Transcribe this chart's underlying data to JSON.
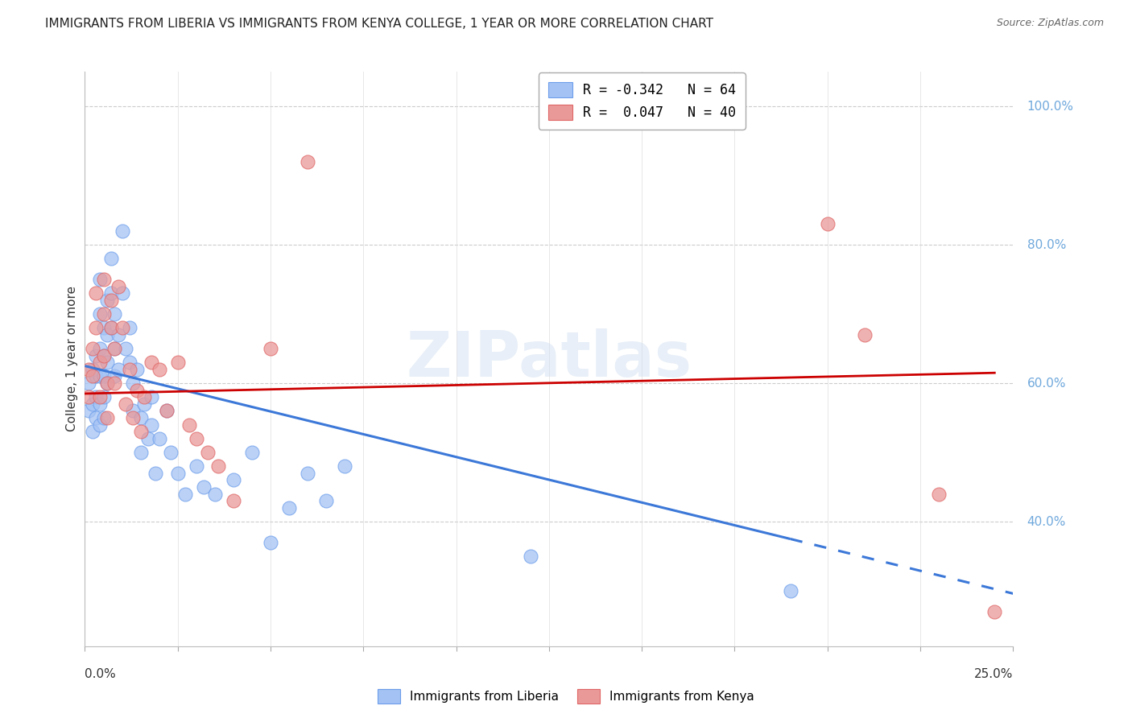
{
  "title": "IMMIGRANTS FROM LIBERIA VS IMMIGRANTS FROM KENYA COLLEGE, 1 YEAR OR MORE CORRELATION CHART",
  "source": "Source: ZipAtlas.com",
  "ylabel": "College, 1 year or more",
  "ylabel_right_ticks": [
    "40.0%",
    "60.0%",
    "80.0%",
    "100.0%"
  ],
  "ylabel_right_vals": [
    0.4,
    0.6,
    0.8,
    1.0
  ],
  "xlim": [
    0.0,
    0.25
  ],
  "ylim": [
    0.22,
    1.05
  ],
  "liberia_R": -0.342,
  "liberia_N": 64,
  "kenya_R": 0.047,
  "kenya_N": 40,
  "liberia_color": "#a4c2f4",
  "kenya_color": "#ea9999",
  "liberia_edge_color": "#6d9eeb",
  "kenya_edge_color": "#e06666",
  "liberia_line_color": "#3c78d8",
  "kenya_line_color": "#cc0000",
  "watermark": "ZIPatlas",
  "liberia_x": [
    0.001,
    0.001,
    0.002,
    0.002,
    0.002,
    0.003,
    0.003,
    0.003,
    0.003,
    0.004,
    0.004,
    0.004,
    0.004,
    0.004,
    0.004,
    0.005,
    0.005,
    0.005,
    0.005,
    0.005,
    0.006,
    0.006,
    0.006,
    0.006,
    0.007,
    0.007,
    0.007,
    0.008,
    0.008,
    0.008,
    0.009,
    0.009,
    0.01,
    0.01,
    0.011,
    0.012,
    0.012,
    0.013,
    0.013,
    0.014,
    0.015,
    0.015,
    0.016,
    0.017,
    0.018,
    0.018,
    0.019,
    0.02,
    0.022,
    0.023,
    0.025,
    0.027,
    0.03,
    0.032,
    0.035,
    0.04,
    0.045,
    0.05,
    0.055,
    0.06,
    0.065,
    0.07,
    0.12,
    0.19
  ],
  "liberia_y": [
    0.6,
    0.56,
    0.62,
    0.57,
    0.53,
    0.64,
    0.61,
    0.58,
    0.55,
    0.75,
    0.7,
    0.65,
    0.61,
    0.57,
    0.54,
    0.68,
    0.64,
    0.61,
    0.58,
    0.55,
    0.72,
    0.67,
    0.63,
    0.6,
    0.78,
    0.73,
    0.68,
    0.7,
    0.65,
    0.61,
    0.67,
    0.62,
    0.82,
    0.73,
    0.65,
    0.68,
    0.63,
    0.6,
    0.56,
    0.62,
    0.55,
    0.5,
    0.57,
    0.52,
    0.58,
    0.54,
    0.47,
    0.52,
    0.56,
    0.5,
    0.47,
    0.44,
    0.48,
    0.45,
    0.44,
    0.46,
    0.5,
    0.37,
    0.42,
    0.47,
    0.43,
    0.48,
    0.35,
    0.3
  ],
  "kenya_x": [
    0.001,
    0.001,
    0.002,
    0.002,
    0.003,
    0.003,
    0.004,
    0.004,
    0.005,
    0.005,
    0.005,
    0.006,
    0.006,
    0.007,
    0.007,
    0.008,
    0.008,
    0.009,
    0.01,
    0.011,
    0.012,
    0.013,
    0.014,
    0.015,
    0.016,
    0.018,
    0.02,
    0.022,
    0.025,
    0.028,
    0.03,
    0.033,
    0.036,
    0.04,
    0.05,
    0.06,
    0.2,
    0.21,
    0.23,
    0.245
  ],
  "kenya_y": [
    0.62,
    0.58,
    0.65,
    0.61,
    0.73,
    0.68,
    0.63,
    0.58,
    0.75,
    0.7,
    0.64,
    0.6,
    0.55,
    0.72,
    0.68,
    0.65,
    0.6,
    0.74,
    0.68,
    0.57,
    0.62,
    0.55,
    0.59,
    0.53,
    0.58,
    0.63,
    0.62,
    0.56,
    0.63,
    0.54,
    0.52,
    0.5,
    0.48,
    0.43,
    0.65,
    0.92,
    0.83,
    0.67,
    0.44,
    0.27
  ],
  "liberia_line_x0": 0.0,
  "liberia_line_x1": 0.19,
  "liberia_line_y0": 0.625,
  "liberia_line_y1": 0.375,
  "kenya_line_x0": 0.0,
  "kenya_line_x1": 0.245,
  "kenya_line_y0": 0.585,
  "kenya_line_y1": 0.615
}
